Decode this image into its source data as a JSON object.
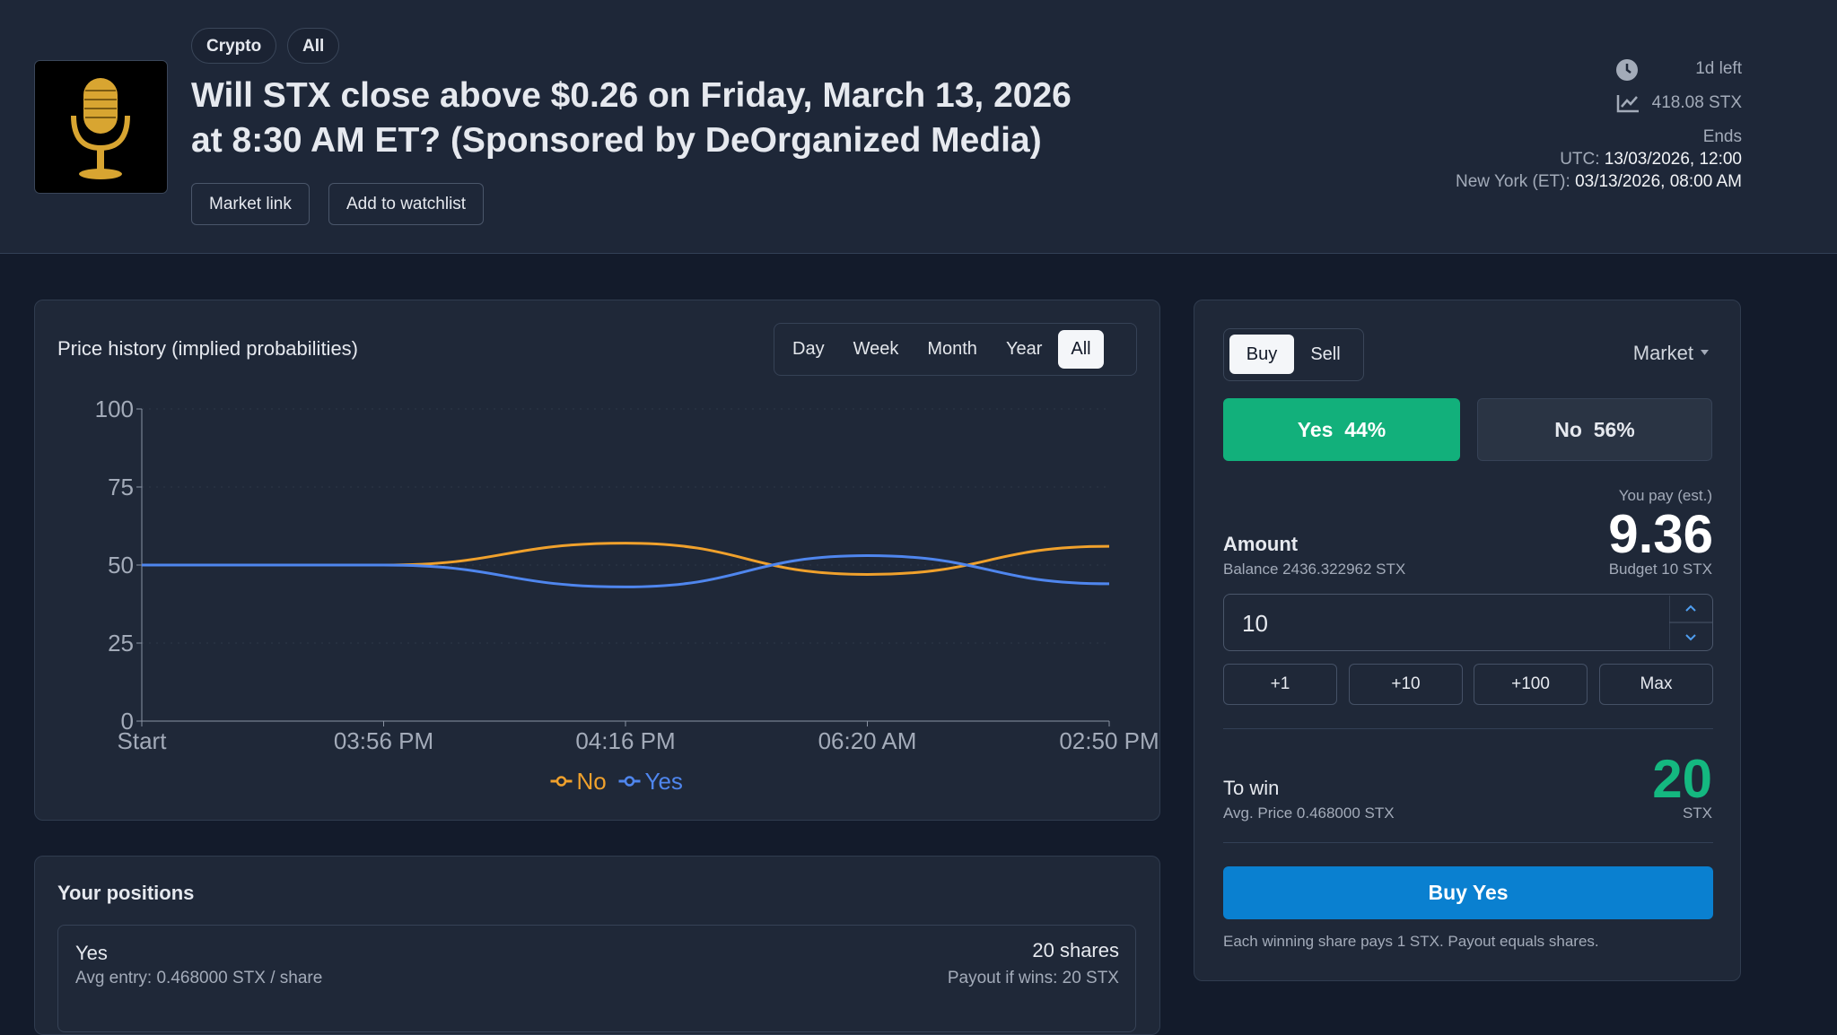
{
  "header": {
    "tags": [
      "Crypto",
      "All"
    ],
    "title": "Will STX close above $0.26 on Friday, March 13, 2026 at 8:30 AM ET? (Sponsored by DeOrganized Media)",
    "buttons": [
      "Market link",
      "Add to watchlist"
    ],
    "time_left": "1d left",
    "volume": "418.08 STX",
    "ends_label": "Ends",
    "utc_label": "UTC:",
    "utc_value": "13/03/2026, 12:00",
    "ny_label": "New York (ET):",
    "ny_value": "03/13/2026, 08:00 AM"
  },
  "chart_ranges": [
    "Day",
    "Week",
    "Month",
    "Year",
    "All"
  ],
  "chart_data": {
    "type": "line",
    "title": "Price history (implied probabilities)",
    "categories": [
      "Start",
      "03:56 PM",
      "04:16 PM",
      "06:20 AM",
      "02:50 PM"
    ],
    "series": [
      {
        "name": "No",
        "color": "#f0a12c",
        "values": [
          50,
          50,
          57,
          47,
          56
        ]
      },
      {
        "name": "Yes",
        "color": "#4f86ee",
        "values": [
          50,
          50,
          43,
          53,
          44
        ]
      }
    ],
    "ylim": [
      0,
      100
    ],
    "yticks": [
      0,
      25,
      50,
      75,
      100
    ],
    "grid": true
  },
  "trade": {
    "sides": [
      "Buy",
      "Sell"
    ],
    "order_type": "Market",
    "outcomes": [
      {
        "label": "Yes",
        "price": "44%"
      },
      {
        "label": "No",
        "price": "56%"
      }
    ],
    "you_pay_label": "You pay (est.)",
    "you_pay": "9.36",
    "amount_label": "Amount",
    "balance": "Balance 2436.322962 STX",
    "budget": "Budget 10 STX",
    "amount_input": "10",
    "quick": [
      "+1",
      "+10",
      "+100",
      "Max"
    ],
    "to_win_label": "To win",
    "avg_price": "Avg. Price 0.468000 STX",
    "to_win": "20",
    "to_win_unit": "STX",
    "submit": "Buy Yes",
    "note": "Each winning share pays 1 STX. Payout equals shares."
  },
  "positions": {
    "title": "Your positions",
    "rows": [
      {
        "outcome": "Yes",
        "avg_entry": "Avg entry: 0.468000 STX / share",
        "shares": "20 shares",
        "payout": "Payout if wins: 20 STX"
      }
    ]
  }
}
